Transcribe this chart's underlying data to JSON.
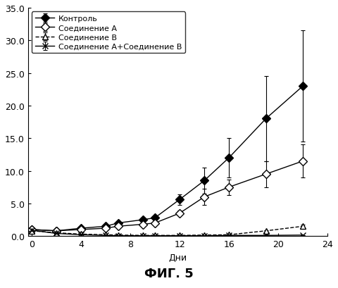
{
  "xlabel": "Дни",
  "xlim": [
    -0.3,
    24
  ],
  "ylim": [
    0,
    35.0
  ],
  "yticks": [
    0.0,
    5.0,
    10.0,
    15.0,
    20.0,
    25.0,
    30.0,
    35.0
  ],
  "xticks": [
    0,
    4,
    8,
    12,
    16,
    20,
    24
  ],
  "series": [
    {
      "label": "Контроль",
      "x": [
        0,
        2,
        4,
        6,
        7,
        9,
        10,
        12,
        14,
        16,
        19,
        22
      ],
      "y": [
        1.0,
        0.8,
        1.2,
        1.5,
        2.0,
        2.5,
        2.8,
        5.6,
        8.5,
        12.0,
        18.0,
        23.0
      ],
      "yerr": [
        0.1,
        0.1,
        0.1,
        0.15,
        0.2,
        0.3,
        0.3,
        0.8,
        2.0,
        3.0,
        6.5,
        8.5
      ],
      "color": "#000000",
      "linestyle": "-",
      "marker": "D",
      "markerfacecolor": "#000000",
      "markersize": 6
    },
    {
      "label": "Соединение A",
      "x": [
        0,
        2,
        4,
        6,
        7,
        9,
        10,
        12,
        14,
        16,
        19,
        22
      ],
      "y": [
        1.0,
        0.8,
        1.0,
        1.2,
        1.5,
        1.8,
        2.0,
        3.5,
        6.0,
        7.5,
        9.5,
        11.5
      ],
      "yerr": [
        0.1,
        0.1,
        0.1,
        0.1,
        0.2,
        0.2,
        0.2,
        0.4,
        1.2,
        1.2,
        2.0,
        2.5
      ],
      "color": "#000000",
      "linestyle": "-",
      "marker": "D",
      "markerfacecolor": "#ffffff",
      "markersize": 6
    },
    {
      "label": "Соединение B",
      "x": [
        0,
        2,
        4,
        6,
        7,
        9,
        10,
        12,
        14,
        16,
        19,
        22
      ],
      "y": [
        0.8,
        0.5,
        0.3,
        0.2,
        0.15,
        0.1,
        0.1,
        0.1,
        0.15,
        0.2,
        0.8,
        1.5
      ],
      "yerr": [
        0.1,
        0.1,
        0.05,
        0.05,
        0.05,
        0.05,
        0.05,
        0.05,
        0.05,
        0.05,
        0.1,
        0.3
      ],
      "color": "#000000",
      "linestyle": "--",
      "marker": "^",
      "markerfacecolor": "#ffffff",
      "markersize": 6
    },
    {
      "label": "Соединение A+Соединение B",
      "x": [
        0,
        2,
        4,
        6,
        7,
        9,
        10,
        12,
        14,
        16,
        19,
        22
      ],
      "y": [
        0.9,
        0.4,
        0.2,
        0.1,
        0.05,
        0.05,
        0.05,
        0.05,
        0.05,
        0.1,
        0.1,
        0.15
      ],
      "yerr": [
        0.1,
        0.05,
        0.03,
        0.03,
        0.02,
        0.02,
        0.02,
        0.02,
        0.02,
        0.03,
        0.03,
        0.03
      ],
      "color": "#000000",
      "linestyle": "-",
      "marker": "x",
      "markerfacecolor": "#000000",
      "markersize": 6
    }
  ],
  "legend_loc": "upper left",
  "background_color": "#ffffff",
  "fig_title": "ФИГ. 5",
  "fig_title_fontsize": 13,
  "axis_fontsize": 9,
  "tick_fontsize": 9,
  "legend_fontsize": 8
}
